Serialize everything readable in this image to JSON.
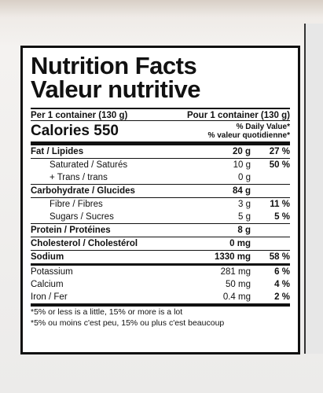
{
  "header": {
    "title": "Nutrition Facts",
    "subtitle": "Valeur nutritive"
  },
  "serving": {
    "en": "Per 1 container (130 g)",
    "fr": "Pour 1 container (130 g)"
  },
  "calories": {
    "label": "Calories",
    "value": "550",
    "dv_en": "% Daily Value*",
    "dv_fr": "% valeur quotidienne*"
  },
  "rows": [
    {
      "name": "Fat / Lipides",
      "amount": "20 g",
      "dv": "27 %",
      "sub": [
        {
          "name": "Saturated / Saturés",
          "amount": "10 g",
          "dv": "50 %"
        },
        {
          "name": "+ Trans / trans",
          "amount": "0 g"
        }
      ]
    },
    {
      "name": "Carbohydrate / Glucides",
      "amount": "84 g",
      "sub": [
        {
          "name": "Fibre / Fibres",
          "amount": "3 g",
          "dv": "11 %"
        },
        {
          "name": "Sugars / Sucres",
          "amount": "5 g",
          "dv": "5 %"
        }
      ]
    },
    {
      "name": "Protein / Protéines",
      "amount": "8 g"
    },
    {
      "name": "Cholesterol / Cholestérol",
      "amount": "0 mg"
    },
    {
      "name": "Sodium",
      "amount": "1330 mg",
      "dv": "58 %"
    },
    {
      "name": "Potassium",
      "amount": "281 mg",
      "dv": "6 %"
    },
    {
      "name": "Calcium",
      "amount": "50 mg",
      "dv": "4 %"
    },
    {
      "name": "Iron / Fer",
      "amount": "0.4 mg",
      "dv": "2 %"
    }
  ],
  "footnote": {
    "en": "*5% or less is a little, 15% or more is a lot",
    "fr": "*5% ou moins c'est peu, 15% ou plus c'est beaucoup"
  }
}
